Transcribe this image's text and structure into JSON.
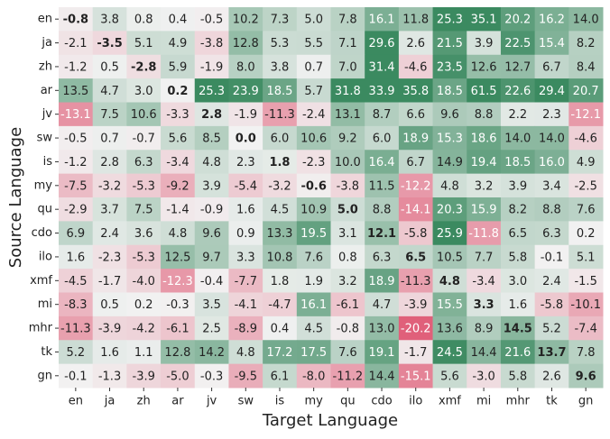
{
  "chart_data": {
    "type": "heatmap",
    "x_label": "Target Language",
    "y_label": "Source Language",
    "x": [
      "en",
      "ja",
      "zh",
      "ar",
      "jv",
      "sw",
      "is",
      "my",
      "qu",
      "cdo",
      "ilo",
      "xmf",
      "mi",
      "mhr",
      "tk",
      "gn"
    ],
    "y": [
      "en",
      "ja",
      "zh",
      "ar",
      "jv",
      "sw",
      "is",
      "my",
      "qu",
      "cdo",
      "ilo",
      "xmf",
      "mi",
      "mhr",
      "tk",
      "gn"
    ],
    "values": [
      [
        -0.8,
        3.8,
        0.8,
        0.4,
        -0.5,
        10.2,
        7.3,
        5.0,
        7.8,
        16.1,
        11.8,
        25.3,
        35.1,
        20.2,
        16.2,
        14.0
      ],
      [
        -2.1,
        -3.5,
        5.1,
        4.9,
        -3.8,
        12.8,
        5.3,
        5.5,
        7.1,
        29.6,
        2.6,
        21.5,
        3.9,
        22.5,
        15.4,
        8.2
      ],
      [
        -1.2,
        0.5,
        -2.8,
        5.9,
        -1.9,
        8.0,
        3.8,
        0.7,
        7.0,
        31.4,
        -4.6,
        23.5,
        12.6,
        12.7,
        6.7,
        8.4
      ],
      [
        13.5,
        4.7,
        3.0,
        0.2,
        25.3,
        23.9,
        18.5,
        5.7,
        31.8,
        33.9,
        35.8,
        18.5,
        61.5,
        22.6,
        29.4,
        20.7
      ],
      [
        -13.1,
        7.5,
        10.6,
        -3.3,
        2.8,
        -1.9,
        -11.3,
        -2.4,
        13.1,
        8.7,
        6.6,
        9.6,
        8.8,
        2.2,
        2.3,
        -12.1
      ],
      [
        -0.5,
        0.7,
        -0.7,
        5.6,
        8.5,
        0.0,
        6.0,
        10.6,
        9.2,
        6.0,
        18.9,
        15.3,
        18.6,
        14.0,
        14.0,
        -4.6
      ],
      [
        -1.2,
        2.8,
        6.3,
        -3.4,
        4.8,
        2.3,
        1.8,
        -2.3,
        10.0,
        16.4,
        6.7,
        14.9,
        19.4,
        18.5,
        16.0,
        4.9
      ],
      [
        -7.5,
        -3.2,
        -5.3,
        -9.2,
        3.9,
        -5.4,
        -3.2,
        -0.6,
        -3.8,
        11.5,
        -12.2,
        4.8,
        3.2,
        3.9,
        3.4,
        -2.5
      ],
      [
        -2.9,
        3.7,
        7.5,
        -1.4,
        -0.9,
        1.6,
        4.5,
        10.9,
        5.0,
        8.8,
        -14.1,
        20.3,
        15.9,
        8.2,
        8.8,
        7.6
      ],
      [
        6.9,
        2.4,
        3.6,
        4.8,
        9.6,
        0.9,
        13.3,
        19.5,
        3.1,
        12.1,
        -5.8,
        25.9,
        -11.8,
        6.5,
        6.3,
        0.2
      ],
      [
        1.6,
        -2.3,
        -5.3,
        12.5,
        9.7,
        3.3,
        10.8,
        7.6,
        0.8,
        6.3,
        6.5,
        10.5,
        7.7,
        5.8,
        -0.1,
        5.1
      ],
      [
        -4.5,
        -1.7,
        -4.0,
        -12.3,
        -0.4,
        -7.7,
        1.8,
        1.9,
        3.2,
        18.9,
        -11.3,
        4.8,
        -3.4,
        3.0,
        2.4,
        -1.5
      ],
      [
        -8.3,
        0.5,
        0.2,
        -0.3,
        3.5,
        -4.1,
        -4.7,
        16.1,
        -6.1,
        4.7,
        -3.9,
        15.5,
        3.3,
        1.6,
        -5.8,
        -10.1
      ],
      [
        -11.3,
        -3.9,
        -4.2,
        -6.1,
        2.5,
        -8.9,
        0.4,
        4.5,
        -0.8,
        13.0,
        -20.2,
        13.6,
        8.9,
        14.5,
        5.2,
        -7.4
      ],
      [
        5.2,
        1.6,
        1.1,
        12.8,
        14.2,
        4.8,
        17.2,
        17.5,
        7.6,
        19.1,
        -1.7,
        24.5,
        14.4,
        21.6,
        13.7,
        7.8
      ],
      [
        -0.1,
        -1.3,
        -3.9,
        -5.0,
        -0.3,
        -9.5,
        6.1,
        -8.0,
        -11.2,
        14.4,
        -15.1,
        5.6,
        -3.0,
        5.8,
        2.6,
        9.6
      ]
    ],
    "value_labels": [
      [
        "-0.8",
        "3.8",
        "0.8",
        "0.4",
        "-0.5",
        "10.2",
        "7.3",
        "5.0",
        "7.8",
        "16.1",
        "11.8",
        "25.3",
        "35.1",
        "20.2",
        "16.2",
        "14.0"
      ],
      [
        "-2.1",
        "-3.5",
        "5.1",
        "4.9",
        "-3.8",
        "12.8",
        "5.3",
        "5.5",
        "7.1",
        "29.6",
        "2.6",
        "21.5",
        "3.9",
        "22.5",
        "15.4",
        "8.2"
      ],
      [
        "-1.2",
        "0.5",
        "-2.8",
        "5.9",
        "-1.9",
        "8.0",
        "3.8",
        "0.7",
        "7.0",
        "31.4",
        "-4.6",
        "23.5",
        "12.6",
        "12.7",
        "6.7",
        "8.4"
      ],
      [
        "13.5",
        "4.7",
        "3.0",
        "0.2",
        "25.3",
        "23.9",
        "18.5",
        "5.7",
        "31.8",
        "33.9",
        "35.8",
        "18.5",
        "61.5",
        "22.6",
        "29.4",
        "20.7"
      ],
      [
        "-13.1",
        "7.5",
        "10.6",
        "-3.3",
        "2.8",
        "-1.9",
        "-11.3",
        "-2.4",
        "13.1",
        "8.7",
        "6.6",
        "9.6",
        "8.8",
        "2.2",
        "2.3",
        "-12.1"
      ],
      [
        "-0.5",
        "0.7",
        "-0.7",
        "5.6",
        "8.5",
        "0.0",
        "6.0",
        "10.6",
        "9.2",
        "6.0",
        "18.9",
        "15.3",
        "18.6",
        "14.0",
        "14.0",
        "-4.6"
      ],
      [
        "-1.2",
        "2.8",
        "6.3",
        "-3.4",
        "4.8",
        "2.3",
        "1.8",
        "-2.3",
        "10.0",
        "16.4",
        "6.7",
        "14.9",
        "19.4",
        "18.5",
        "16.0",
        "4.9"
      ],
      [
        "-7.5",
        "-3.2",
        "-5.3",
        "-9.2",
        "3.9",
        "-5.4",
        "-3.2",
        "-0.6",
        "-3.8",
        "11.5",
        "-12.2",
        "4.8",
        "3.2",
        "3.9",
        "3.4",
        "-2.5"
      ],
      [
        "-2.9",
        "3.7",
        "7.5",
        "-1.4",
        "-0.9",
        "1.6",
        "4.5",
        "10.9",
        "5.0",
        "8.8",
        "-14.1",
        "20.3",
        "15.9",
        "8.2",
        "8.8",
        "7.6"
      ],
      [
        "6.9",
        "2.4",
        "3.6",
        "4.8",
        "9.6",
        "0.9",
        "13.3",
        "19.5",
        "3.1",
        "12.1",
        "-5.8",
        "25.9",
        "-11.8",
        "6.5",
        "6.3",
        "0.2"
      ],
      [
        "1.6",
        "-2.3",
        "-5.3",
        "12.5",
        "9.7",
        "3.3",
        "10.8",
        "7.6",
        "0.8",
        "6.3",
        "6.5",
        "10.5",
        "7.7",
        "5.8",
        "-0.1",
        "5.1"
      ],
      [
        "-4.5",
        "-1.7",
        "-4.0",
        "-12.3",
        "-0.4",
        "-7.7",
        "1.8",
        "1.9",
        "3.2",
        "18.9",
        "-11.3",
        "4.8",
        "-3.4",
        "3.0",
        "2.4",
        "-1.5"
      ],
      [
        "-8.3",
        "0.5",
        "0.2",
        "-0.3",
        "3.5",
        "-4.1",
        "-4.7",
        "16.1",
        "-6.1",
        "4.7",
        "-3.9",
        "15.5",
        "3.3",
        "1.6",
        "-5.8",
        "-10.1"
      ],
      [
        "-11.3",
        "-3.9",
        "-4.2",
        "-6.1",
        "2.5",
        "-8.9",
        "0.4",
        "4.5",
        "-0.8",
        "13.0",
        "-20.2",
        "13.6",
        "8.9",
        "14.5",
        "5.2",
        "-7.4"
      ],
      [
        "5.2",
        "1.6",
        "1.1",
        "12.8",
        "14.2",
        "4.8",
        "17.2",
        "17.5",
        "7.6",
        "19.1",
        "-1.7",
        "24.5",
        "14.4",
        "21.6",
        "13.7",
        "7.8"
      ],
      [
        "-0.1",
        "-1.3",
        "-3.9",
        "-5.0",
        "-0.3",
        "-9.5",
        "6.1",
        "-8.0",
        "-11.2",
        "14.4",
        "-15.1",
        "5.6",
        "-3.0",
        "5.8",
        "2.6",
        "9.6"
      ]
    ],
    "color_limits": [
      -20,
      25
    ],
    "colors": {
      "low": "#e0607a",
      "mid": "#f2f2f2",
      "high": "#3b8a60"
    },
    "bold_diagonal": true
  }
}
